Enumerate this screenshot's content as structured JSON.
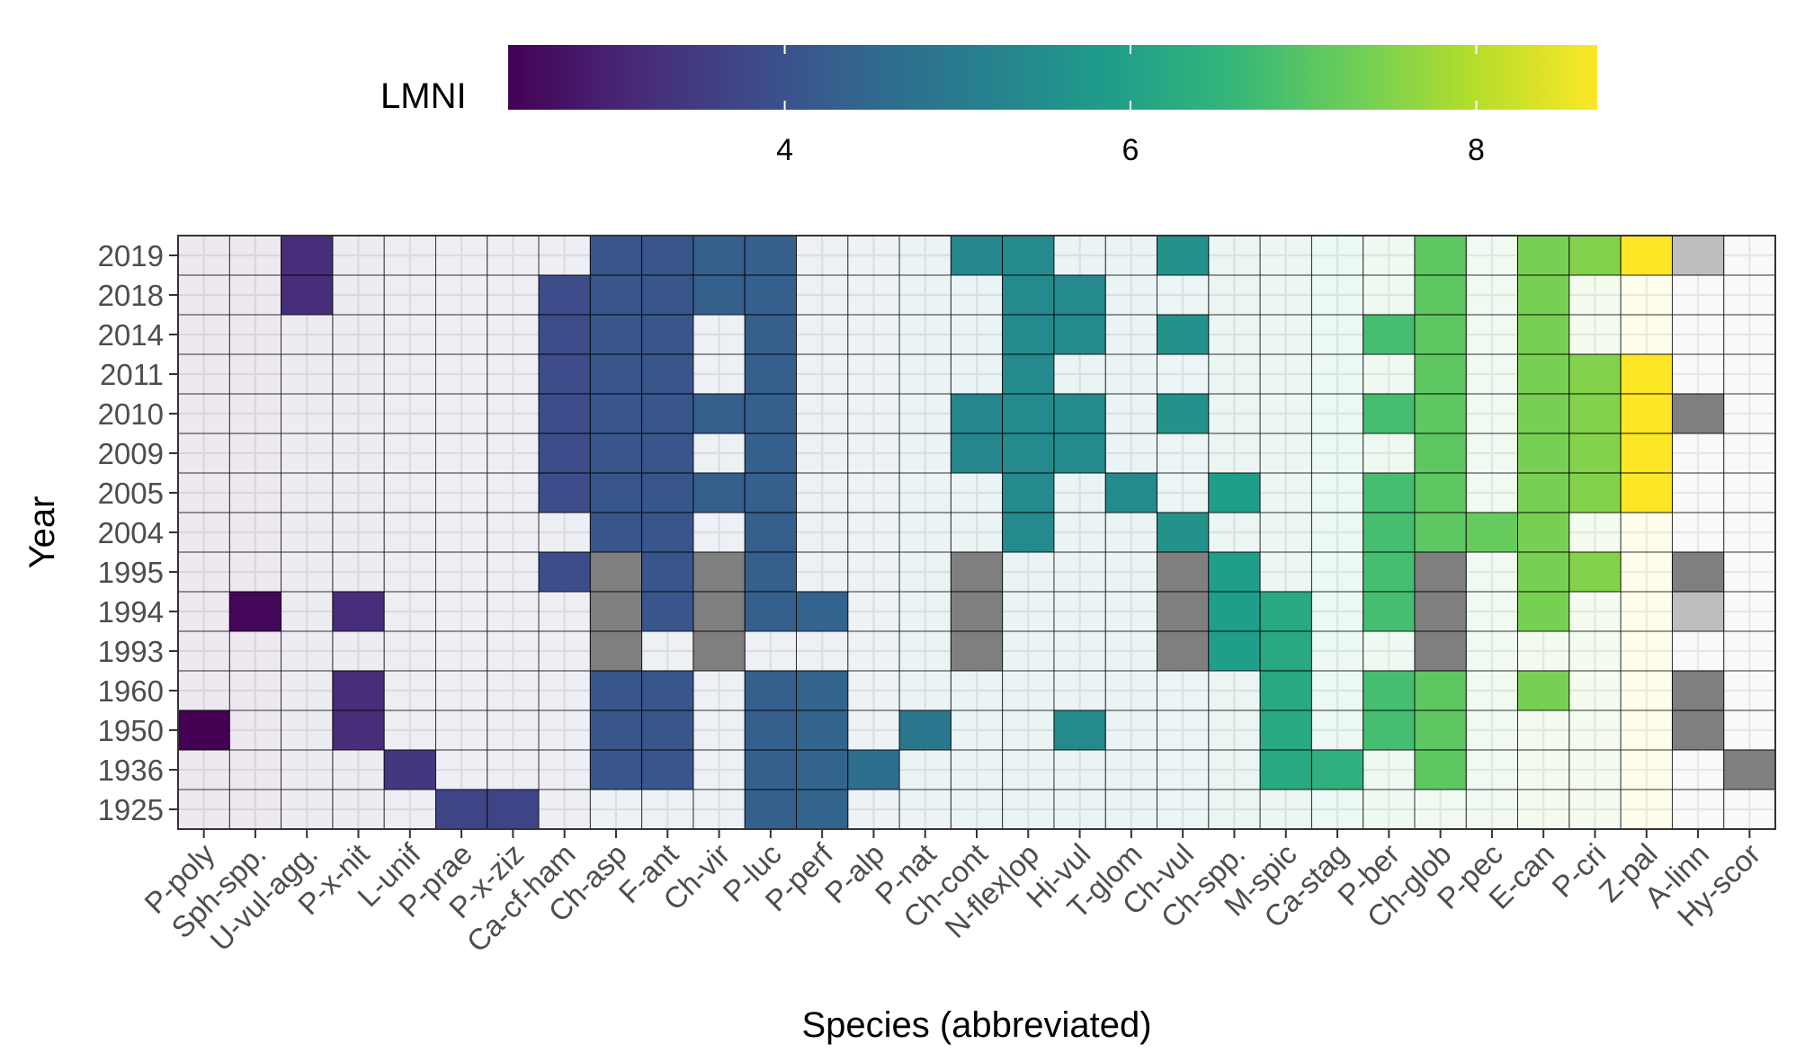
{
  "chart_data": {
    "type": "heatmap",
    "xlabel": "Species (abbreviated)",
    "ylabel": "Year",
    "legend": {
      "title": "LMNI",
      "position": "top",
      "range": [
        2.4,
        8.7
      ],
      "ticks": [
        4,
        6,
        8
      ],
      "colormap": "viridis",
      "stops": [
        "#440154",
        "#482878",
        "#3e4989",
        "#31688e",
        "#26828e",
        "#1f9e89",
        "#35b779",
        "#6ece58",
        "#b5de2b",
        "#fde725"
      ]
    },
    "species": [
      "P-poly",
      "Sph-spp.",
      "U-vul-agg.",
      "P-x-nit",
      "L-unif",
      "P-prae",
      "P-x-ziz",
      "Ca-cf-ham",
      "Ch-asp",
      "F-ant",
      "Ch-vir",
      "P-luc",
      "P-perf",
      "P-alp",
      "P-nat",
      "Ch-cont",
      "N-flex|op",
      "Hi-vul",
      "T-glom",
      "Ch-vul",
      "Ch-spp.",
      "M-spic",
      "Ca-stag",
      "P-ber",
      "Ch-glob",
      "P-pec",
      "E-can",
      "P-cri",
      "Z-pal",
      "A-linn",
      "Hy-scor"
    ],
    "species_lmni": [
      2.4,
      2.5,
      3.2,
      3.2,
      3.4,
      3.7,
      3.7,
      3.9,
      4.1,
      4.1,
      4.3,
      4.3,
      4.4,
      4.7,
      4.9,
      5.3,
      5.4,
      5.4,
      5.4,
      5.6,
      5.9,
      6.2,
      6.4,
      6.8,
      7.1,
      7.2,
      7.4,
      7.5,
      8.7,
      null,
      null
    ],
    "years": [
      "2019",
      "2018",
      "2014",
      "2011",
      "2010",
      "2009",
      "2005",
      "2004",
      "1995",
      "1994",
      "1993",
      "1960",
      "1950",
      "1936",
      "1925"
    ],
    "grid": true,
    "value_key": "Values: lmni number = coloured cell (LMNI value); \"NA\" = dark grey cell; \"NA2\" = light grey cell; null = species absent (faint cell)",
    "rows": [
      [
        null,
        null,
        3.2,
        null,
        null,
        null,
        null,
        null,
        4.1,
        4.1,
        4.3,
        4.3,
        null,
        null,
        null,
        5.3,
        5.4,
        null,
        null,
        5.6,
        null,
        null,
        null,
        null,
        7.1,
        null,
        7.4,
        7.5,
        8.7,
        "NA2",
        null
      ],
      [
        null,
        null,
        3.2,
        null,
        null,
        null,
        null,
        3.9,
        4.1,
        4.1,
        4.3,
        4.3,
        null,
        null,
        null,
        null,
        5.4,
        5.4,
        null,
        null,
        null,
        null,
        null,
        null,
        7.1,
        null,
        7.4,
        null,
        null,
        null,
        null
      ],
      [
        null,
        null,
        null,
        null,
        null,
        null,
        null,
        3.9,
        4.1,
        4.1,
        null,
        4.3,
        null,
        null,
        null,
        null,
        5.4,
        5.4,
        null,
        5.6,
        null,
        null,
        null,
        6.8,
        7.1,
        null,
        7.4,
        null,
        null,
        null,
        null
      ],
      [
        null,
        null,
        null,
        null,
        null,
        null,
        null,
        3.9,
        4.1,
        4.1,
        null,
        4.3,
        null,
        null,
        null,
        null,
        5.4,
        null,
        null,
        null,
        null,
        null,
        null,
        null,
        7.1,
        null,
        7.4,
        7.5,
        8.7,
        null,
        null
      ],
      [
        null,
        null,
        null,
        null,
        null,
        null,
        null,
        3.9,
        4.1,
        4.1,
        4.3,
        4.3,
        null,
        null,
        null,
        5.3,
        5.4,
        5.4,
        null,
        5.6,
        null,
        null,
        null,
        6.8,
        7.1,
        null,
        7.4,
        7.5,
        8.7,
        "NA",
        null
      ],
      [
        null,
        null,
        null,
        null,
        null,
        null,
        null,
        3.9,
        4.1,
        4.1,
        null,
        4.3,
        null,
        null,
        null,
        5.3,
        5.4,
        5.4,
        null,
        null,
        null,
        null,
        null,
        null,
        7.1,
        null,
        7.4,
        7.5,
        8.7,
        null,
        null
      ],
      [
        null,
        null,
        null,
        null,
        null,
        null,
        null,
        3.9,
        4.1,
        4.1,
        4.3,
        4.3,
        null,
        null,
        null,
        null,
        5.4,
        null,
        5.4,
        null,
        5.9,
        null,
        null,
        6.8,
        7.1,
        null,
        7.4,
        7.5,
        8.7,
        null,
        null
      ],
      [
        null,
        null,
        null,
        null,
        null,
        null,
        null,
        null,
        4.1,
        4.1,
        null,
        4.3,
        null,
        null,
        null,
        null,
        5.4,
        null,
        null,
        5.6,
        null,
        null,
        null,
        6.8,
        7.1,
        7.2,
        7.4,
        null,
        null,
        null,
        null
      ],
      [
        null,
        null,
        null,
        null,
        null,
        null,
        null,
        3.9,
        "NA",
        4.1,
        "NA",
        4.3,
        null,
        null,
        null,
        "NA",
        null,
        null,
        null,
        "NA",
        5.9,
        null,
        null,
        6.8,
        "NA",
        null,
        7.4,
        7.5,
        null,
        "NA",
        null
      ],
      [
        null,
        2.5,
        null,
        3.2,
        null,
        null,
        null,
        null,
        "NA",
        4.1,
        "NA",
        4.3,
        4.4,
        null,
        null,
        "NA",
        null,
        null,
        null,
        "NA",
        5.9,
        6.2,
        null,
        6.8,
        "NA",
        null,
        7.4,
        null,
        null,
        "NA2",
        null
      ],
      [
        null,
        null,
        null,
        null,
        null,
        null,
        null,
        null,
        "NA",
        null,
        "NA",
        null,
        null,
        null,
        null,
        "NA",
        null,
        null,
        null,
        "NA",
        5.9,
        6.2,
        null,
        null,
        "NA",
        null,
        null,
        null,
        null,
        null,
        null
      ],
      [
        null,
        null,
        null,
        3.2,
        null,
        null,
        null,
        null,
        4.1,
        4.1,
        null,
        4.3,
        4.4,
        null,
        null,
        null,
        null,
        null,
        null,
        null,
        null,
        6.2,
        null,
        6.8,
        7.1,
        null,
        7.4,
        null,
        null,
        "NA",
        null
      ],
      [
        2.4,
        null,
        null,
        3.2,
        null,
        null,
        null,
        null,
        4.1,
        4.1,
        null,
        4.3,
        4.4,
        null,
        4.9,
        null,
        null,
        5.4,
        null,
        null,
        null,
        6.2,
        null,
        6.8,
        7.1,
        null,
        null,
        null,
        null,
        "NA",
        null
      ],
      [
        null,
        null,
        null,
        null,
        3.4,
        null,
        null,
        null,
        4.1,
        4.1,
        null,
        4.3,
        4.4,
        4.7,
        null,
        null,
        null,
        null,
        null,
        null,
        null,
        6.2,
        6.4,
        null,
        7.1,
        null,
        null,
        null,
        null,
        null,
        "NA"
      ],
      [
        null,
        null,
        null,
        null,
        null,
        3.7,
        3.7,
        null,
        null,
        null,
        null,
        4.3,
        4.4,
        null,
        null,
        null,
        null,
        null,
        null,
        null,
        null,
        null,
        null,
        null,
        null,
        null,
        null,
        null,
        null,
        null,
        null
      ]
    ]
  }
}
